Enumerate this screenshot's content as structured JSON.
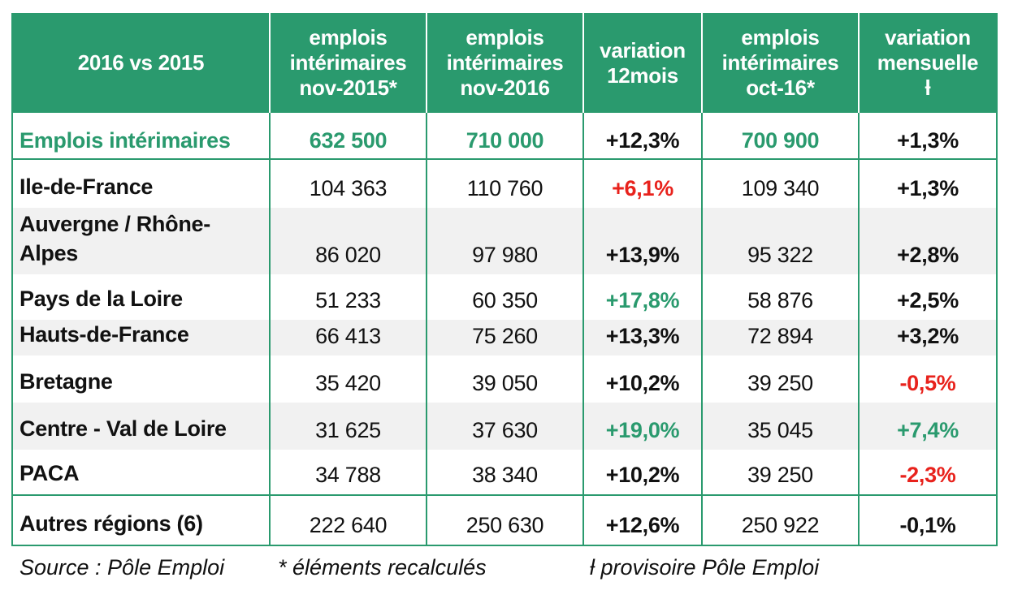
{
  "table": {
    "headers": [
      [
        "2016 vs 2015"
      ],
      [
        "emplois",
        "intérimaires",
        "nov-2015*"
      ],
      [
        "emplois",
        "intérimaires",
        "nov-2016"
      ],
      [
        "variation",
        "12mois"
      ],
      [
        "emplois",
        "intérimaires",
        "oct-16*"
      ],
      [
        "variation",
        "mensuelle",
        "ƚ"
      ]
    ],
    "total": {
      "label": "Emplois intérimaires",
      "nov2015": "632 500",
      "nov2016": "710 000",
      "var12": "+12,3%",
      "oct16": "700 900",
      "varm": "+1,3%"
    },
    "rows": [
      {
        "label": "Ile-de-France",
        "nov2015": "104 363",
        "nov2016": "110 760",
        "var12": "+6,1%",
        "oct16": "109 340",
        "varm": "+1,3%"
      },
      {
        "label": "Auvergne / Rhône-Alpes",
        "nov2015": "86 020",
        "nov2016": "97 980",
        "var12": "+13,9%",
        "oct16": "95 322",
        "varm": "+2,8%"
      },
      {
        "label": "Pays de la Loire",
        "nov2015": "51 233",
        "nov2016": "60 350",
        "var12": "+17,8%",
        "oct16": "58 876",
        "varm": "+2,5%"
      },
      {
        "label": "Hauts-de-France",
        "nov2015": "66 413",
        "nov2016": "75 260",
        "var12": "+13,3%",
        "oct16": "72 894",
        "varm": "+3,2%"
      },
      {
        "label": "Bretagne",
        "nov2015": "35 420",
        "nov2016": "39 050",
        "var12": "+10,2%",
        "oct16": "39 250",
        "varm": "-0,5%"
      },
      {
        "label": "Centre - Val de Loire",
        "nov2015": "31 625",
        "nov2016": "37 630",
        "var12": "+19,0%",
        "oct16": "35 045",
        "varm": "+7,4%"
      },
      {
        "label": "PACA",
        "nov2015": "34 788",
        "nov2016": "38 340",
        "var12": "+10,2%",
        "oct16": "39 250",
        "varm": "-2,3%"
      },
      {
        "label": "Autres régions (6)",
        "nov2015": "222 640",
        "nov2016": "250 630",
        "var12": "+12,6%",
        "oct16": "250 922",
        "varm": "-0,1%"
      }
    ]
  },
  "notes": {
    "source": "Source : Pôle Emploi",
    "recalc": "* éléments recalculés",
    "provisoire": "ƚ provisoire Pôle Emploi"
  },
  "colors": {
    "header_bg": "#2a9a6e",
    "header_text": "#ffffff",
    "positive_highlight": "#2a9a6e",
    "negative_highlight": "#e8221c",
    "alt_row_bg": "#f1f1f1"
  }
}
